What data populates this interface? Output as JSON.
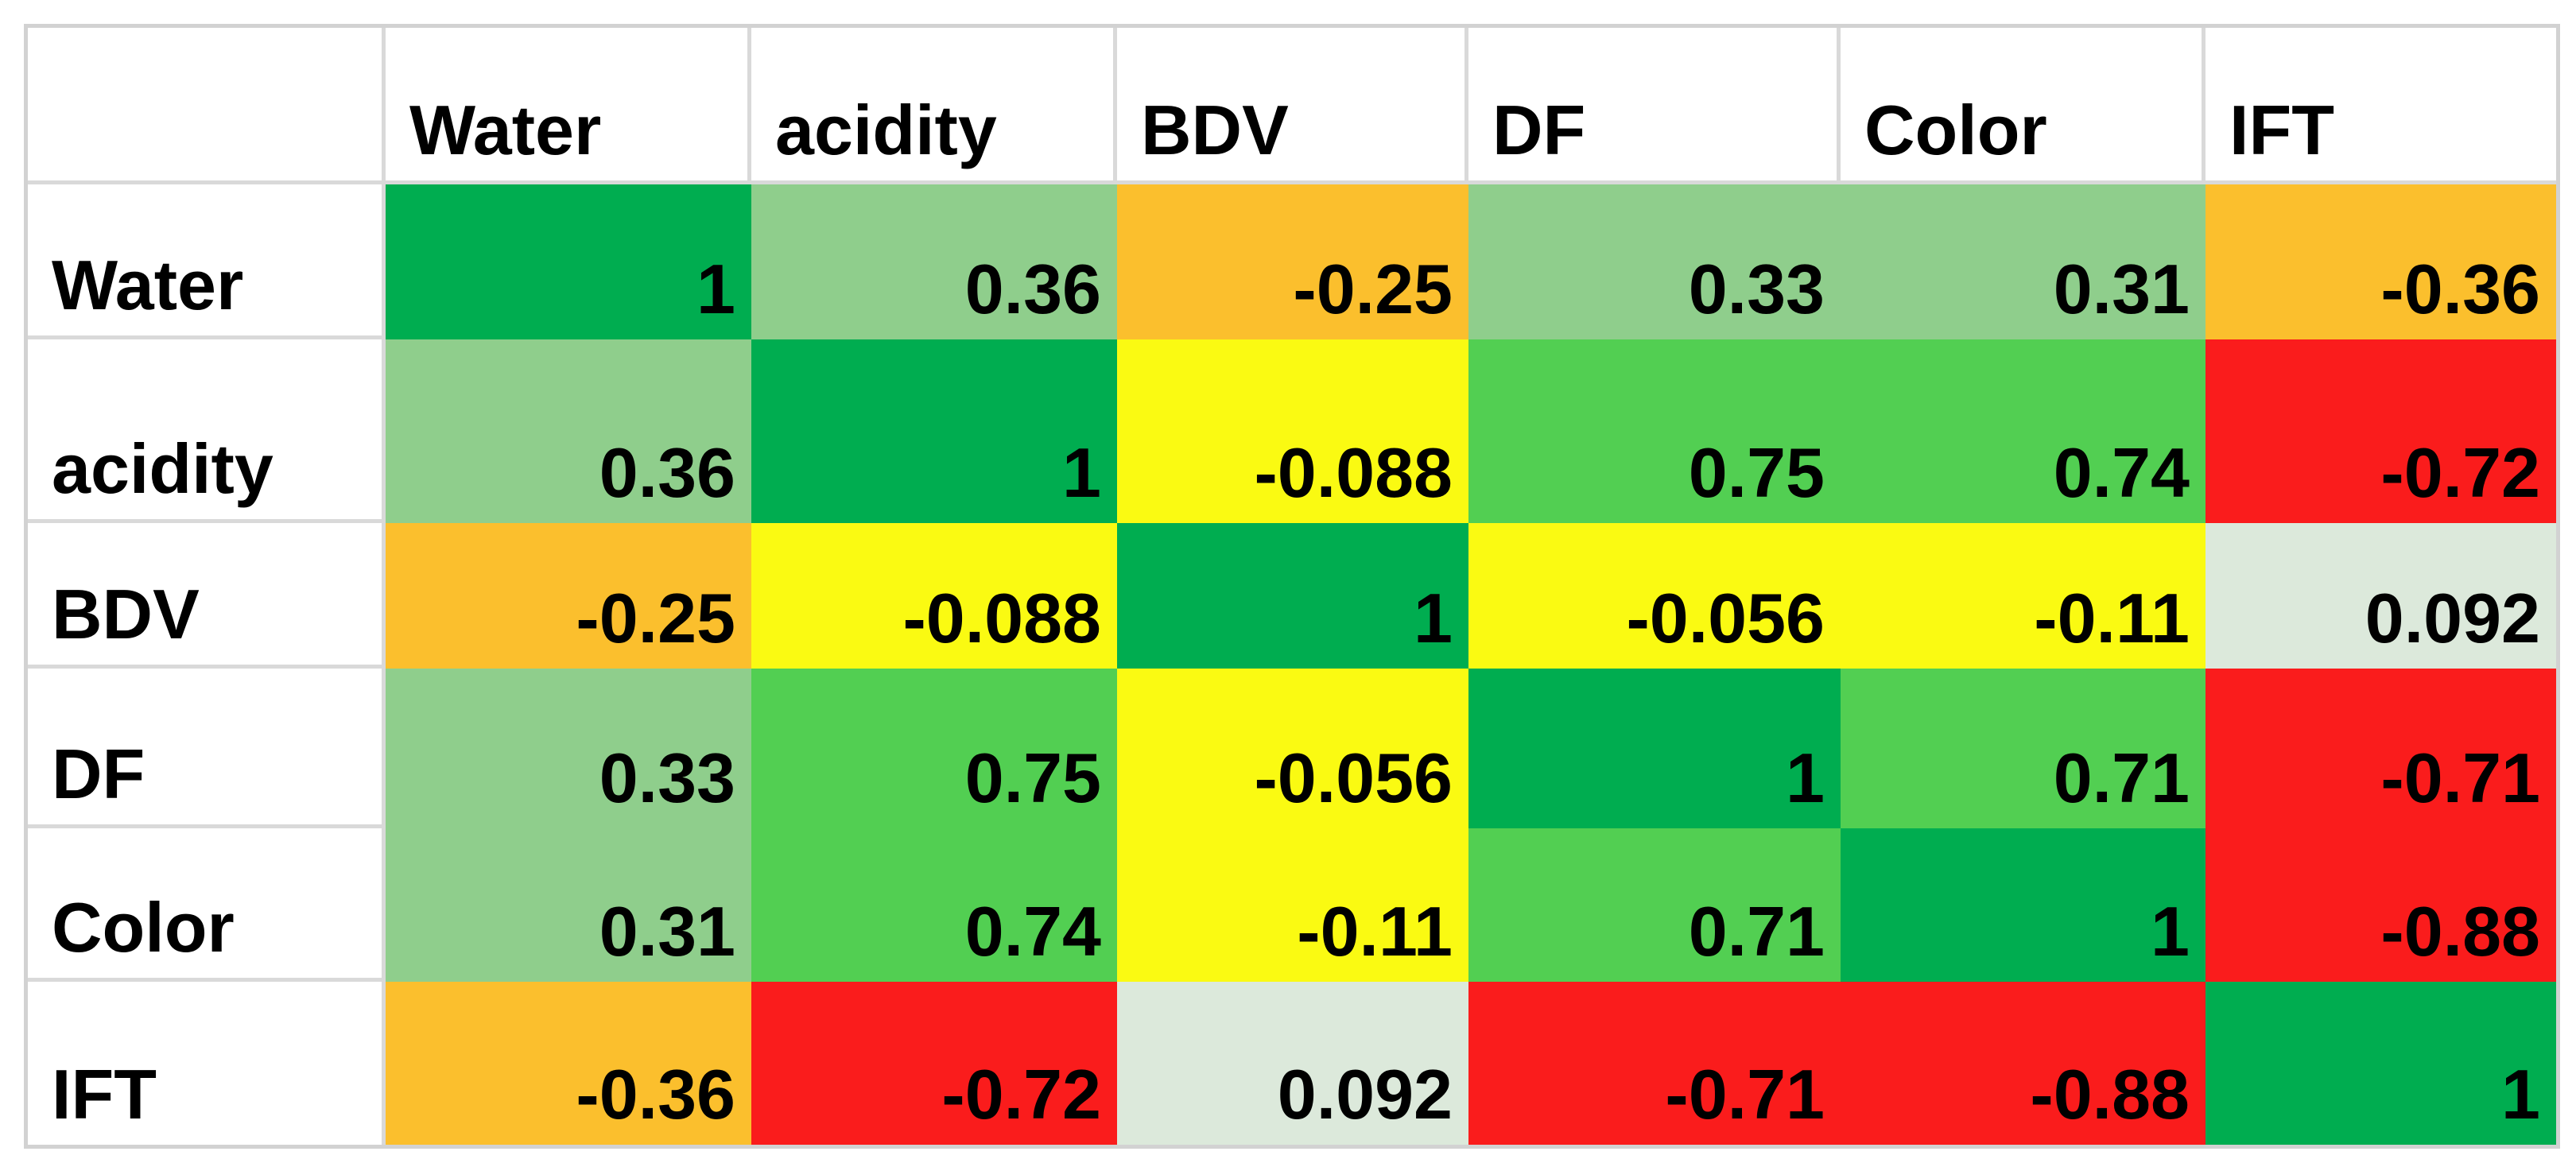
{
  "chart_data": {
    "type": "heatmap",
    "title": "",
    "subtitle": "",
    "legend": "none",
    "grid_on": true,
    "variables": [
      "Water",
      "acidity",
      "BDV",
      "DF",
      "Color",
      "IFT"
    ],
    "rows": [
      {
        "label": "Water",
        "values": [
          "1",
          "0.36",
          "-0.25",
          "0.33",
          "0.31",
          "-0.36"
        ],
        "colors": [
          "diag",
          "sage",
          "orange",
          "sage",
          "sage",
          "orange"
        ]
      },
      {
        "label": "acidity",
        "values": [
          "0.36",
          "1",
          "-0.088",
          "0.75",
          "0.74",
          "-0.72"
        ],
        "colors": [
          "sage",
          "diag",
          "yellow",
          "green",
          "green",
          "red"
        ]
      },
      {
        "label": "BDV",
        "values": [
          "-0.25",
          "-0.088",
          "1",
          "-0.056",
          "-0.11",
          "0.092"
        ],
        "colors": [
          "orange",
          "yellow",
          "diag",
          "yellow",
          "yellow",
          "pale"
        ]
      },
      {
        "label": "DF",
        "values": [
          "0.33",
          "0.75",
          "-0.056",
          "1",
          "0.71",
          "-0.71"
        ],
        "colors": [
          "sage",
          "green",
          "yellow",
          "diag",
          "green",
          "red"
        ]
      },
      {
        "label": "Color",
        "values": [
          "0.31",
          "0.74",
          "-0.11",
          "0.71",
          "1",
          "-0.88"
        ],
        "colors": [
          "sage",
          "green",
          "yellow",
          "green",
          "diag",
          "red"
        ]
      },
      {
        "label": "IFT",
        "values": [
          "-0.36",
          "-0.72",
          "0.092",
          "-0.71",
          "-0.88",
          "1"
        ],
        "colors": [
          "orange",
          "red",
          "pale",
          "red",
          "red",
          "diag"
        ]
      }
    ],
    "palette": {
      "diag": "#00AD50",
      "green": "#52CF52",
      "sage": "#8FCE8C",
      "pale": "#DCE9DB",
      "yellow": "#FAFA12",
      "orange": "#FBBF2D",
      "red": "#FA1C1C"
    },
    "cell_text_color": "#000000",
    "gridline_color": "#D9D9D9",
    "outer_border_color": "#D2D2D2",
    "background_color": "#FFFFFF"
  }
}
